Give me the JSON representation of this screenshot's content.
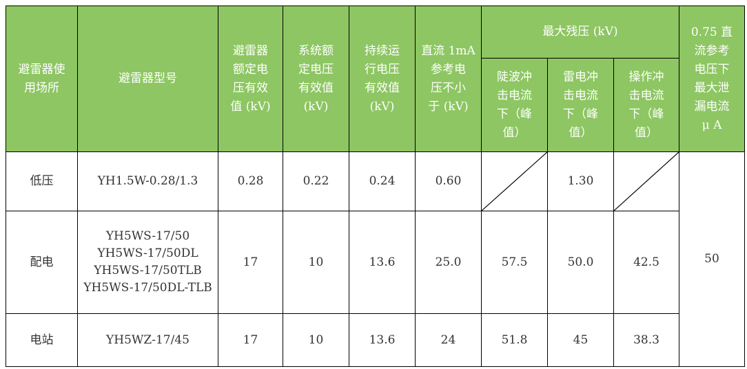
{
  "header": {
    "location": "避雷器使\n用场所",
    "model": "避雷器型号",
    "rated_voltage": "避雷器\n额定电\n压有效\n值 (kV)",
    "system_voltage": "系统额\n定电压\n有效值\n(kV)",
    "continuous_voltage": "持续运\n行电压\n有效值\n(kV)",
    "dc_ref_voltage": "直流 1mA\n参考电\n压不小\n于 (kV)",
    "max_residual": "最大残压 (kV)",
    "steep": "陡波冲\n击电流\n下（峰\n值）",
    "lightning": "雷电冲\n击电流\n下（峰\n值）",
    "switching": "操作冲\n击电流\n下（峰\n值）",
    "leakage": "0.75 直\n流参考\n电压下\n最大泄\n漏电流\nμ A"
  },
  "rows": [
    {
      "location": "低压",
      "model": "YH1.5W-0.28/1.3",
      "rated": "0.28",
      "system": "0.22",
      "continuous": "0.24",
      "dc_ref": "0.60",
      "steep": "",
      "lightning": "1.30",
      "switching": ""
    },
    {
      "location": "配电",
      "model": "YH5WS-17/50\nYH5WS-17/50DL\nYH5WS-17/50TLB\nYH5WS-17/50DL-TLB",
      "rated": "17",
      "system": "10",
      "continuous": "13.6",
      "dc_ref": "25.0",
      "steep": "57.5",
      "lightning": "50.0",
      "switching": "42.5"
    },
    {
      "location": "电站",
      "model": "YH5WZ-17/45",
      "rated": "17",
      "system": "10",
      "continuous": "13.6",
      "dc_ref": "24",
      "steep": "51.8",
      "lightning": "45",
      "switching": "38.3"
    }
  ],
  "leakage_value": "50",
  "colors": {
    "header_bg": "#8dc662",
    "header_text": "#ffffff"
  }
}
